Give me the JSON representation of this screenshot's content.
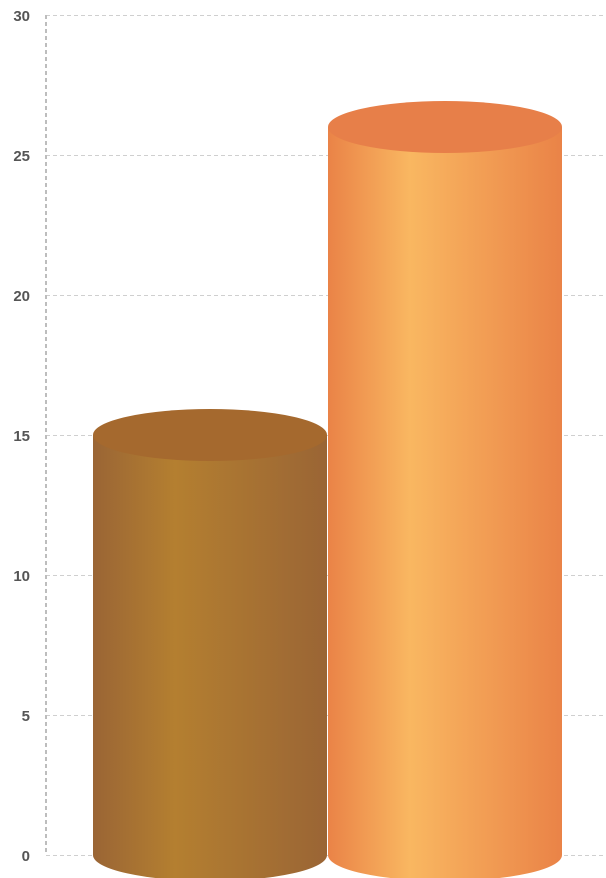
{
  "chart_data": {
    "type": "bar",
    "style": "3d-cylinder",
    "title": "",
    "xlabel": "",
    "ylabel": "",
    "categories": [
      "",
      ""
    ],
    "values": [
      15,
      26
    ],
    "ylim": [
      0,
      30
    ],
    "yticks": [
      "0",
      "5",
      "10",
      "15",
      "20",
      "25",
      "30"
    ],
    "ytick_values": [
      0,
      5,
      10,
      15,
      20,
      25,
      30
    ],
    "grid": true,
    "legend": "none",
    "colors": [
      {
        "edge": "#9A6535",
        "mid": "#B47F30",
        "top": "#A5692E"
      },
      {
        "edge": "#EA8347",
        "mid": "#F9B761",
        "top": "#E77F49"
      }
    ]
  }
}
